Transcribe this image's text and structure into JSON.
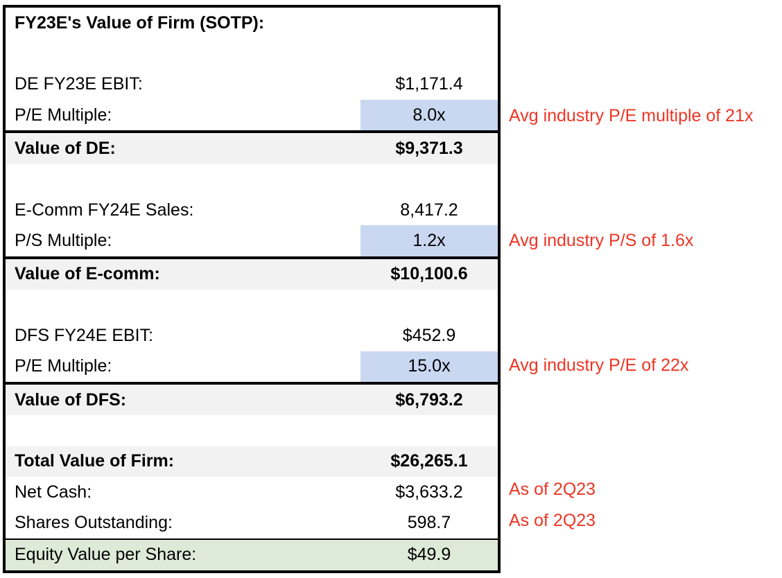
{
  "table": {
    "title": "FY23E's Value of Firm (SOTP):",
    "sections": {
      "de": {
        "ebit": {
          "label": "DE FY23E EBIT:",
          "value": "$1,171.4"
        },
        "multiple": {
          "label": "P/E Multiple:",
          "value": "8.0x"
        },
        "subtotal": {
          "label": "Value of DE:",
          "value": "$9,371.3"
        }
      },
      "ecomm": {
        "sales": {
          "label": "E-Comm FY24E Sales:",
          "value": "8,417.2"
        },
        "multiple": {
          "label": "P/S Multiple:",
          "value": "1.2x"
        },
        "subtotal": {
          "label": "Value of E-comm:",
          "value": "$10,100.6"
        }
      },
      "dfs": {
        "ebit": {
          "label": "DFS FY24E EBIT:",
          "value": "$452.9"
        },
        "multiple": {
          "label": "P/E Multiple:",
          "value": "15.0x"
        },
        "subtotal": {
          "label": "Value of DFS:",
          "value": "$6,793.2"
        }
      },
      "summary": {
        "total": {
          "label": "Total Value of Firm:",
          "value": "$26,265.1"
        },
        "net_cash": {
          "label": "Net Cash:",
          "value": "$3,633.2"
        },
        "shares": {
          "label": "Shares Outstanding:",
          "value": "598.7"
        },
        "equity_per_share": {
          "label": "Equity Value per Share:",
          "value": "$49.9"
        }
      }
    }
  },
  "annotations": {
    "de_multiple": "Avg industry P/E multiple of 21x",
    "ecomm_multiple": "Avg industry P/S of 1.6x",
    "dfs_multiple": "Avg industry P/E of 22x",
    "net_cash": "As of 2Q23",
    "shares": "As of 2Q23"
  },
  "colors": {
    "input_cell_blue": "#C9D7F1",
    "subtotal_row_gray": "#F2F2F2",
    "result_row_green": "#DEEAD8",
    "annotation_red": "#EE3524",
    "border_black": "#000000"
  }
}
